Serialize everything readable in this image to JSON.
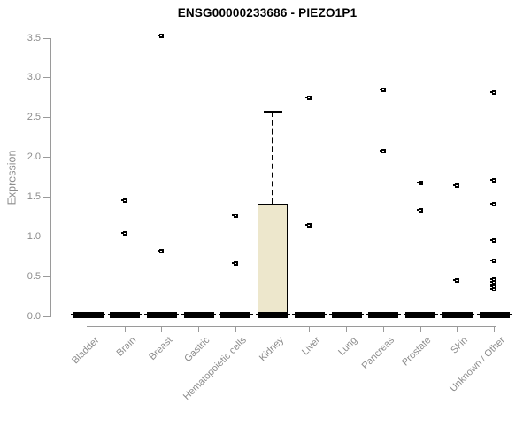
{
  "chart_data": {
    "type": "box",
    "title": "ENSG00000233686 - PIEZO1P1",
    "ylabel": "Expression",
    "xlabel": "",
    "ylim": [
      0,
      3.5
    ],
    "ytick_labels": [
      "0.0",
      "0.5",
      "1.0",
      "1.5",
      "2.0",
      "2.5",
      "3.0",
      "3.5"
    ],
    "grid": false,
    "legend": "none",
    "categories": [
      "Bladder",
      "Brain",
      "Breast",
      "Gastric",
      "Hematopoietic cells",
      "Kidney",
      "Liver",
      "Lung",
      "Pancreas",
      "Prostate",
      "Skin",
      "Unknown / Other"
    ],
    "boxes": [
      {
        "category": "Bladder",
        "q1": 0,
        "median": 0.02,
        "q3": 0,
        "whisker_low": 0,
        "whisker_high": 0,
        "outliers": []
      },
      {
        "category": "Brain",
        "q1": 0,
        "median": 0.02,
        "q3": 0,
        "whisker_low": 0,
        "whisker_high": 0,
        "outliers": [
          1.45,
          1.04
        ]
      },
      {
        "category": "Breast",
        "q1": 0,
        "median": 0.02,
        "q3": 0,
        "whisker_low": 0,
        "whisker_high": 0,
        "outliers": [
          3.53,
          0.82
        ]
      },
      {
        "category": "Gastric",
        "q1": 0,
        "median": 0.02,
        "q3": 0,
        "whisker_low": 0,
        "whisker_high": 0,
        "outliers": []
      },
      {
        "category": "Hematopoietic cells",
        "q1": 0,
        "median": 0.02,
        "q3": 0,
        "whisker_low": 0,
        "whisker_high": 0,
        "outliers": [
          1.26,
          0.66
        ]
      },
      {
        "category": "Kidney",
        "q1": 0,
        "median": 0.02,
        "q3": 1.42,
        "whisker_low": 0,
        "whisker_high": 2.57,
        "outliers": []
      },
      {
        "category": "Liver",
        "q1": 0,
        "median": 0.02,
        "q3": 0,
        "whisker_low": 0,
        "whisker_high": 0,
        "outliers": [
          2.75,
          1.14
        ]
      },
      {
        "category": "Lung",
        "q1": 0,
        "median": 0.02,
        "q3": 0,
        "whisker_low": 0,
        "whisker_high": 0,
        "outliers": []
      },
      {
        "category": "Pancreas",
        "q1": 0,
        "median": 0.02,
        "q3": 0,
        "whisker_low": 0,
        "whisker_high": 0,
        "outliers": [
          2.85,
          2.08
        ]
      },
      {
        "category": "Prostate",
        "q1": 0,
        "median": 0.02,
        "q3": 0,
        "whisker_low": 0,
        "whisker_high": 0,
        "outliers": [
          1.68,
          1.33
        ]
      },
      {
        "category": "Skin",
        "q1": 0,
        "median": 0.02,
        "q3": 0,
        "whisker_low": 0,
        "whisker_high": 0,
        "outliers": [
          1.64,
          0.45
        ]
      },
      {
        "category": "Unknown / Other",
        "q1": 0,
        "median": 0.02,
        "q3": 0,
        "whisker_low": 0,
        "whisker_high": 0,
        "outliers": [
          2.82,
          1.71,
          1.41,
          0.95,
          0.7,
          0.46,
          0.43,
          0.4,
          0.37,
          0.34
        ]
      }
    ],
    "colors": {
      "box_fill": "#ede7cc",
      "box_border": "#000000",
      "outlier": "#000000",
      "axis": "#9a9a9a",
      "tick_text": "#8c8c8c",
      "title_text": "#000000",
      "background": "#ffffff"
    }
  }
}
